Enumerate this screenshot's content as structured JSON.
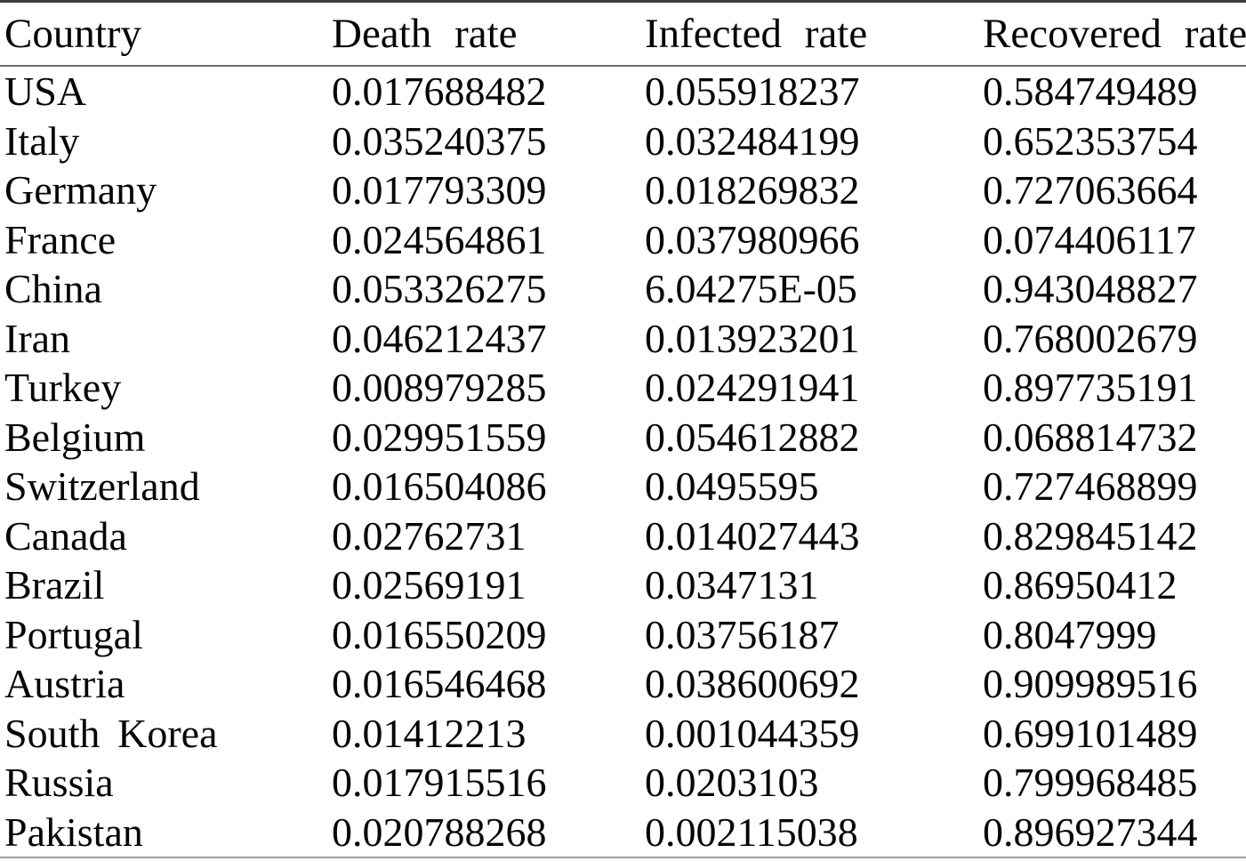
{
  "table": {
    "headers": [
      "Country",
      "Death rate",
      "Infected rate",
      "Recovered rate"
    ],
    "column_keys": [
      "country",
      "death-rate",
      "infected-rate",
      "recovered-rate"
    ],
    "rows": [
      [
        "USA",
        "0.017688482",
        "0.055918237",
        "0.584749489"
      ],
      [
        "Italy",
        "0.035240375",
        "0.032484199",
        "0.652353754"
      ],
      [
        "Germany",
        "0.017793309",
        "0.018269832",
        "0.727063664"
      ],
      [
        "France",
        "0.024564861",
        "0.037980966",
        "0.074406117"
      ],
      [
        "China",
        "0.053326275",
        "6.04275E-05",
        "0.943048827"
      ],
      [
        "Iran",
        "0.046212437",
        "0.013923201",
        "0.768002679"
      ],
      [
        "Turkey",
        "0.008979285",
        "0.024291941",
        "0.897735191"
      ],
      [
        "Belgium",
        "0.029951559",
        "0.054612882",
        "0.068814732"
      ],
      [
        "Switzerland",
        "0.016504086",
        "0.0495595",
        "0.727468899"
      ],
      [
        "Canada",
        "0.02762731",
        "0.014027443",
        "0.829845142"
      ],
      [
        "Brazil",
        "0.02569191",
        "0.0347131",
        "0.86950412"
      ],
      [
        "Portugal",
        "0.016550209",
        "0.03756187",
        "0.8047999"
      ],
      [
        "Austria",
        "0.016546468",
        "0.038600692",
        "0.909989516"
      ],
      [
        "South Korea",
        "0.01412213",
        "0.001044359",
        "0.699101489"
      ],
      [
        "Russia",
        "0.017915516",
        "0.0203103",
        "0.799968485"
      ],
      [
        "Pakistan",
        "0.020788268",
        "0.002115038",
        "0.896927344"
      ]
    ]
  },
  "chart_data": {
    "type": "table",
    "title": "",
    "columns": [
      "Country",
      "Death rate",
      "Infected rate",
      "Recovered rate"
    ],
    "rows": [
      [
        "USA",
        0.017688482,
        0.055918237,
        0.584749489
      ],
      [
        "Italy",
        0.035240375,
        0.032484199,
        0.652353754
      ],
      [
        "Germany",
        0.017793309,
        0.018269832,
        0.727063664
      ],
      [
        "France",
        0.024564861,
        0.037980966,
        0.074406117
      ],
      [
        "China",
        0.053326275,
        6.04275e-05,
        0.943048827
      ],
      [
        "Iran",
        0.046212437,
        0.013923201,
        0.768002679
      ],
      [
        "Turkey",
        0.008979285,
        0.024291941,
        0.897735191
      ],
      [
        "Belgium",
        0.029951559,
        0.054612882,
        0.068814732
      ],
      [
        "Switzerland",
        0.016504086,
        0.0495595,
        0.727468899
      ],
      [
        "Canada",
        0.02762731,
        0.014027443,
        0.829845142
      ],
      [
        "Brazil",
        0.02569191,
        0.0347131,
        0.86950412
      ],
      [
        "Portugal",
        0.016550209,
        0.03756187,
        0.8047999
      ],
      [
        "Austria",
        0.016546468,
        0.038600692,
        0.909989516
      ],
      [
        "South Korea",
        0.01412213,
        0.001044359,
        0.699101489
      ],
      [
        "Russia",
        0.017915516,
        0.0203103,
        0.799968485
      ],
      [
        "Pakistan",
        0.020788268,
        0.002115038,
        0.896927344
      ]
    ]
  },
  "colors": {
    "background": "#ffffff",
    "text": "#060606",
    "rule_top": "#3a3a3a",
    "rule_header": "#6f6f6f",
    "rule_bottom": "#9e9e9e"
  }
}
